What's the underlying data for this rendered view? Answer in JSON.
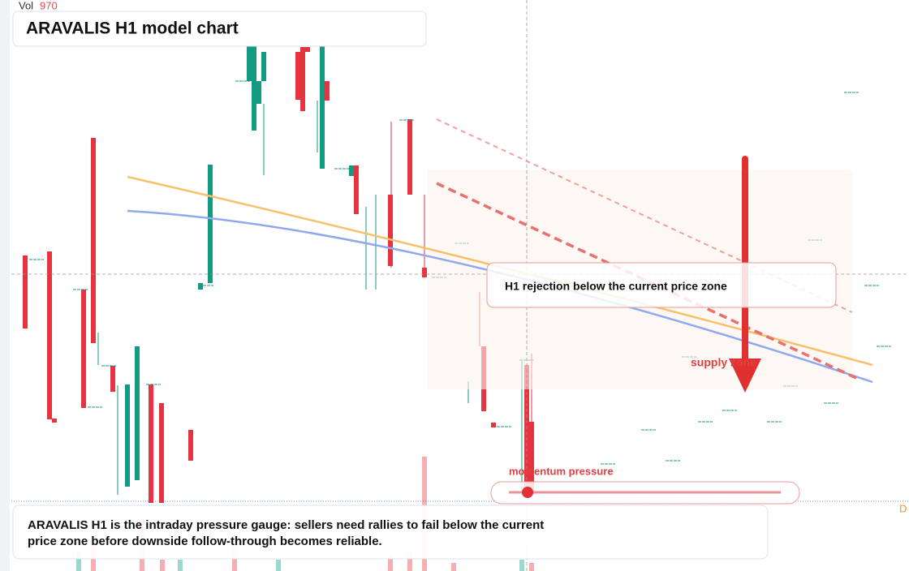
{
  "chart_data": {
    "type": "candlestick",
    "volume_label": "Vol",
    "volume_value": "970",
    "title": "ARAVALIS H1 model chart",
    "annotation": "H1 rejection below the current price zone",
    "zone_label": "supply zone",
    "gauge_label": "momentum pressure",
    "summary": [
      "ARAVALIS H1 is the intraday pressure gauge: sellers need rallies to fail below the current",
      "price zone before downside follow-through becomes reliable."
    ],
    "edge_label": "D"
  }
}
